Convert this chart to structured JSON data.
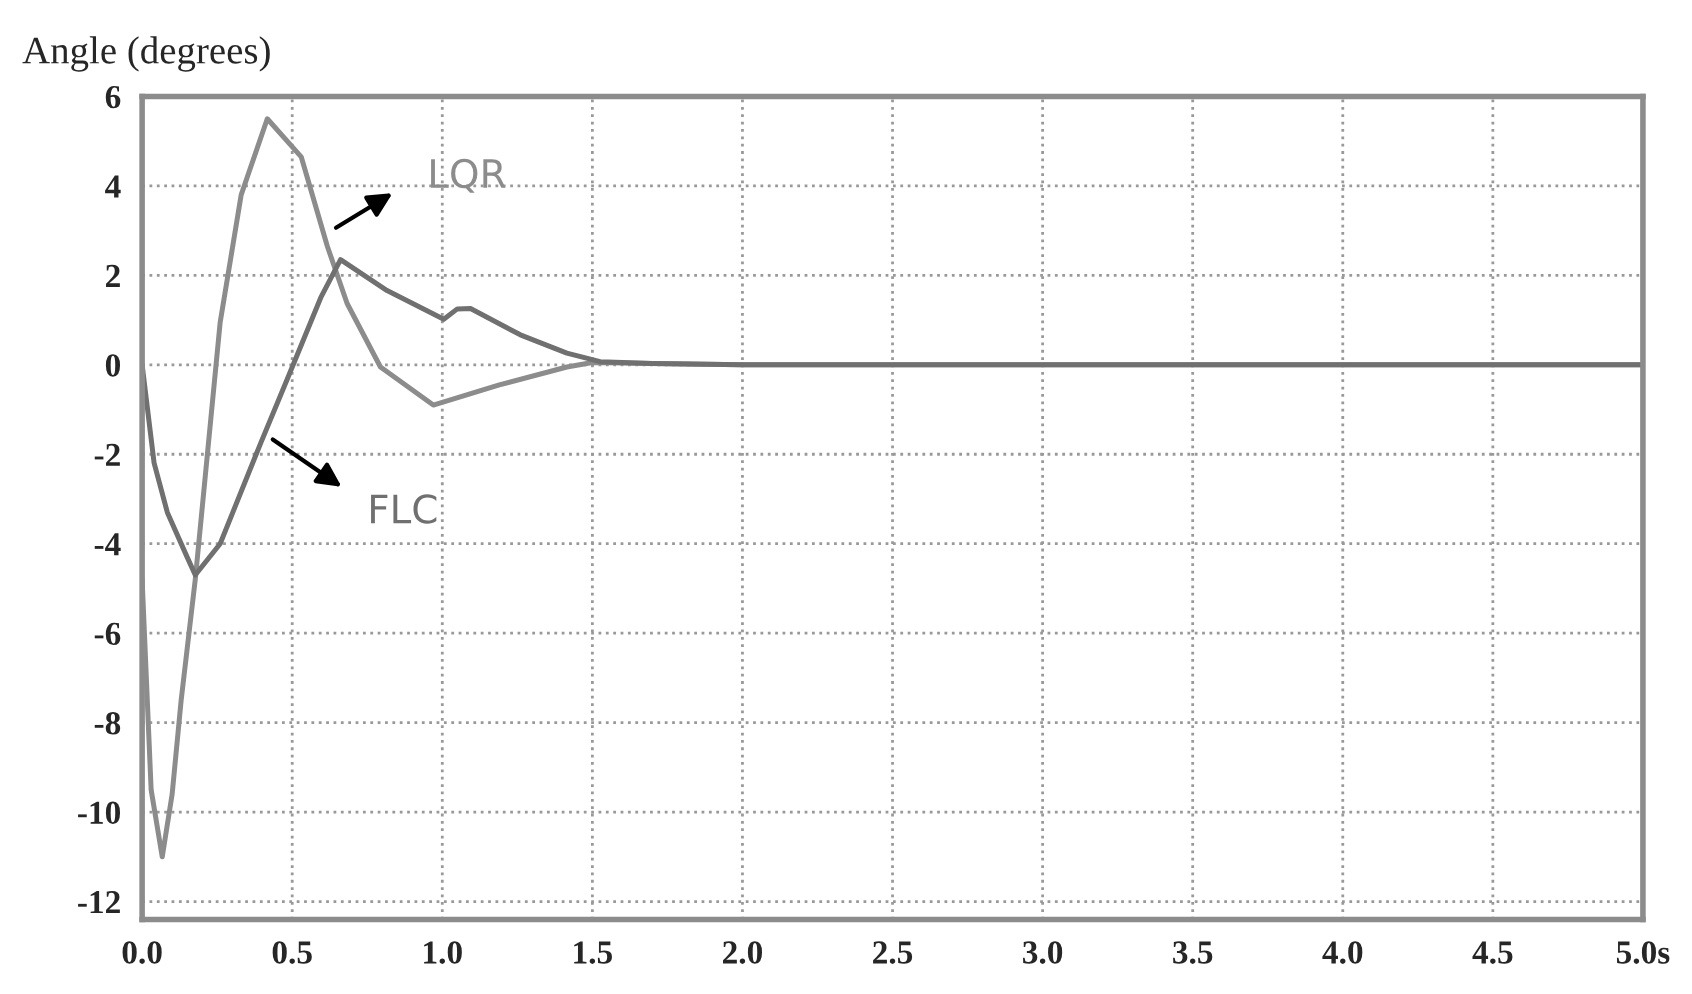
{
  "chart_data": {
    "type": "line",
    "ylabel": "Angle (degrees)",
    "xlim": [
      0,
      5
    ],
    "xticks": [
      {
        "value": 0,
        "label": "0.0"
      },
      {
        "value": 0.5,
        "label": "0.5"
      },
      {
        "value": 1,
        "label": "1.0"
      },
      {
        "value": 1.5,
        "label": "1.5"
      },
      {
        "value": 2,
        "label": "2.0"
      },
      {
        "value": 2.5,
        "label": "2.5"
      },
      {
        "value": 3,
        "label": "3.0"
      },
      {
        "value": 3.5,
        "label": "3.5"
      },
      {
        "value": 4,
        "label": "4.0"
      },
      {
        "value": 4.5,
        "label": "4.5"
      },
      {
        "value": 5,
        "label": "5.0s"
      }
    ],
    "ylim": [
      -12.4,
      6
    ],
    "yticks": [
      -12,
      -10,
      -8,
      -6,
      -4,
      -2,
      0,
      2,
      4,
      6
    ],
    "grid": true,
    "line_style": "solid",
    "series": [
      {
        "name": "LQR",
        "color": "#8c8c8c",
        "x": [
          0.0,
          0.03,
          0.067,
          0.1,
          0.13,
          0.177,
          0.26,
          0.33,
          0.417,
          0.53,
          0.617,
          0.683,
          0.794,
          0.97,
          1.19,
          1.415,
          1.5,
          1.7,
          2.0,
          3.0,
          4.0,
          5.0
        ],
        "values": [
          -4.8,
          -9.5,
          -11.0,
          -9.6,
          -7.5,
          -4.8,
          0.95,
          3.8,
          5.5,
          4.65,
          2.65,
          1.37,
          -0.05,
          -0.9,
          -0.45,
          -0.05,
          0.05,
          0.03,
          0,
          0,
          0,
          0
        ]
      },
      {
        "name": "FLC",
        "color": "#707070",
        "x": [
          0.0,
          0.04,
          0.084,
          0.15,
          0.177,
          0.26,
          0.395,
          0.483,
          0.595,
          0.661,
          0.816,
          1.005,
          1.05,
          1.094,
          1.26,
          1.415,
          1.526,
          1.7,
          2.0,
          3.0,
          4.0,
          5.0
        ],
        "values": [
          0.0,
          -2.2,
          -3.3,
          -4.3,
          -4.7,
          -4.0,
          -1.75,
          -0.33,
          1.5,
          2.35,
          1.66,
          1.02,
          1.25,
          1.26,
          0.67,
          0.26,
          0.07,
          0.03,
          0,
          0,
          0,
          0
        ]
      }
    ]
  }
}
